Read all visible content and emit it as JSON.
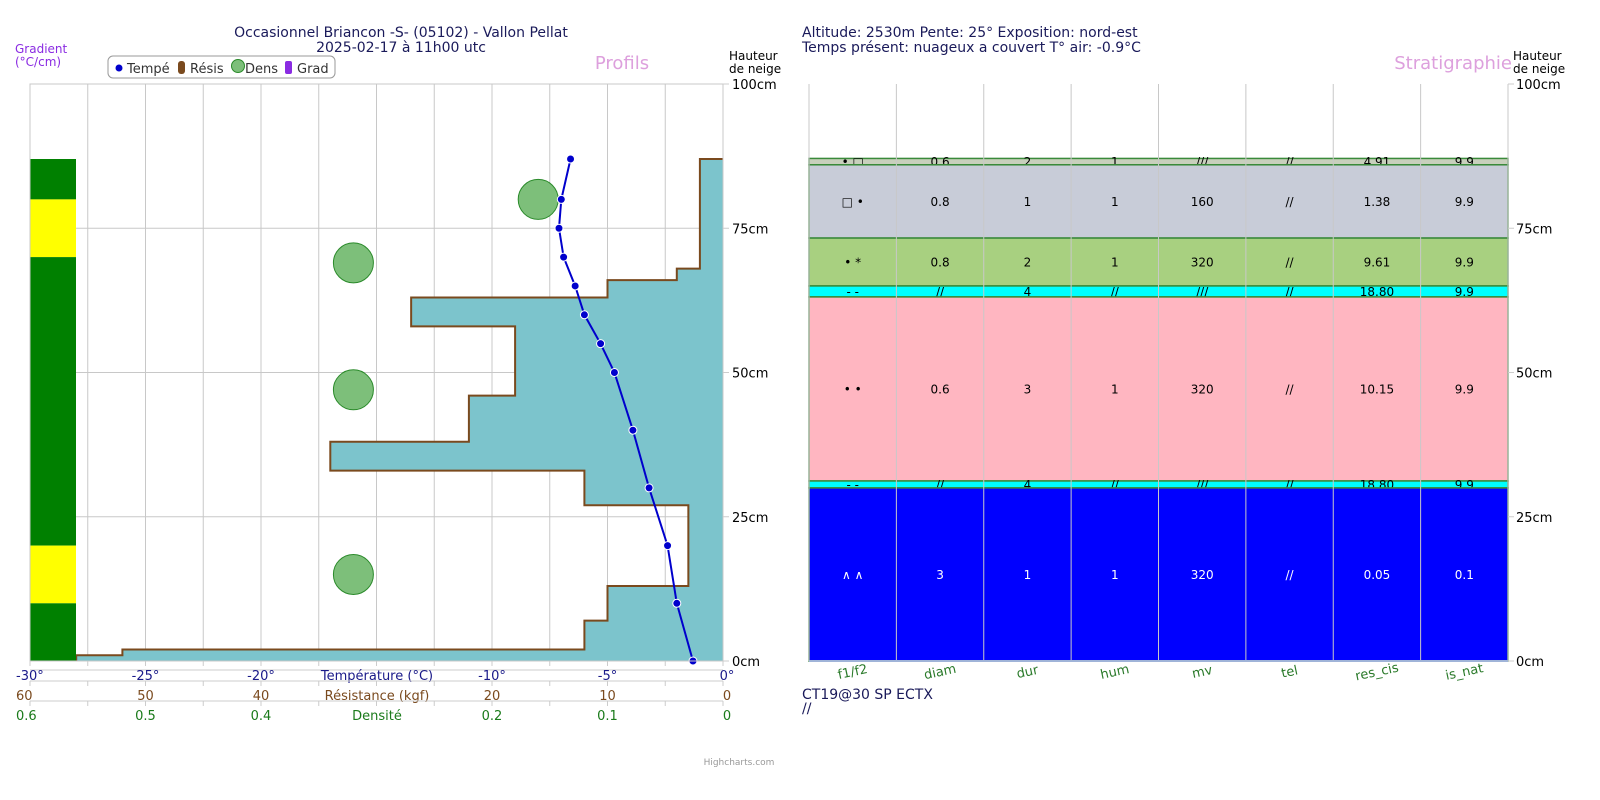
{
  "chart_data": [
    {
      "type": "line",
      "title": "Occasionnel Briancon -S- (05102) - Vallon Pellat",
      "subtitle": "2025-02-17 à 11h00 utc",
      "watermark": "Profils",
      "left_axis_title": "Gradient (°C/cm)",
      "left_axis_title_lines": [
        "Gradient",
        "(°C/cm)"
      ],
      "right_axis_title_lines": [
        "Hauteur",
        "de neige"
      ],
      "legend": [
        "Tempé",
        "Résis",
        "Dens",
        "Grad"
      ],
      "legend_placement": "top-left",
      "colors": {
        "temp": "#0000cc",
        "resis": "#7a4a1e",
        "resis_fill": "#7cc4cc",
        "dens": "#7dbf7a",
        "grad": "#8a2be2",
        "grad_green": "#008000",
        "grad_yellow": "#ffff00"
      },
      "y_axis": {
        "range": [
          0,
          100
        ],
        "ticks": [
          "0cm",
          "25cm",
          "50cm",
          "75cm",
          "100cm"
        ]
      },
      "x_axes": [
        {
          "title": "Température (°C)",
          "range": [
            -30,
            0
          ],
          "ticks": [
            "-30°",
            "-25°",
            "-20°",
            "-10°",
            "-5°",
            "0°"
          ],
          "tick_values": [
            -30,
            -25,
            -20,
            -10,
            -5,
            0
          ]
        },
        {
          "title": "Résistance (kgf)",
          "range": [
            60,
            0
          ],
          "ticks": [
            "60",
            "50",
            "40",
            "20",
            "10",
            "0"
          ],
          "tick_values": [
            60,
            50,
            40,
            20,
            10,
            0
          ]
        },
        {
          "title": "Densité",
          "range": [
            0.6,
            0
          ],
          "ticks": [
            "0.6",
            "0.5",
            "0.4",
            "0.2",
            "0.1",
            "0"
          ],
          "tick_values": [
            0.6,
            0.5,
            0.4,
            0.2,
            0.1,
            0
          ]
        }
      ],
      "temperature": {
        "heights": [
          87,
          80,
          75,
          70,
          65,
          60,
          55,
          50,
          40,
          30,
          20,
          10,
          0
        ],
        "values": [
          -6.6,
          -7.0,
          -7.1,
          -6.9,
          -6.4,
          -6.0,
          -5.3,
          -4.7,
          -3.9,
          -3.2,
          -2.4,
          -2.0,
          -1.3
        ]
      },
      "resistance_layers": [
        {
          "top": 87,
          "bottom": 68,
          "value": 2
        },
        {
          "top": 68,
          "bottom": 66,
          "value": 4
        },
        {
          "top": 66,
          "bottom": 63,
          "value": 10
        },
        {
          "top": 63,
          "bottom": 58,
          "value": 27
        },
        {
          "top": 58,
          "bottom": 46,
          "value": 18
        },
        {
          "top": 46,
          "bottom": 38,
          "value": 22
        },
        {
          "top": 38,
          "bottom": 33,
          "value": 34
        },
        {
          "top": 33,
          "bottom": 27,
          "value": 12
        },
        {
          "top": 27,
          "bottom": 13,
          "value": 3
        },
        {
          "top": 13,
          "bottom": 7,
          "value": 10
        },
        {
          "top": 7,
          "bottom": 2,
          "value": 12
        },
        {
          "top": 2,
          "bottom": 1,
          "value": 52
        },
        {
          "top": 1,
          "bottom": 0,
          "value": 56
        }
      ],
      "density_points": [
        {
          "height": 80,
          "value": 0.16
        },
        {
          "height": 69,
          "value": 0.32
        },
        {
          "height": 47,
          "value": 0.32
        },
        {
          "height": 15,
          "value": 0.32
        }
      ],
      "gradient_segments": [
        {
          "top": 87,
          "bottom": 80,
          "color": "green"
        },
        {
          "top": 80,
          "bottom": 70,
          "color": "yellow"
        },
        {
          "top": 70,
          "bottom": 20,
          "color": "green"
        },
        {
          "top": 20,
          "bottom": 10,
          "color": "yellow"
        },
        {
          "top": 10,
          "bottom": 0,
          "color": "green"
        }
      ]
    },
    {
      "type": "table",
      "title_lines": [
        "Altitude: 2530m Pente: 25° Exposition: nord-est",
        "Temps présent: nuageux a couvert T° air: -0.9°C"
      ],
      "watermark": "Stratigraphie",
      "right_axis_title_lines": [
        "Hauteur",
        "de neige"
      ],
      "y_axis": {
        "range": [
          0,
          100
        ],
        "ticks": [
          "0cm",
          "25cm",
          "50cm",
          "75cm",
          "100cm"
        ]
      },
      "columns": [
        "f1/f2",
        "diam",
        "dur",
        "hum",
        "mv",
        "tel",
        "res_cis",
        "is_nat"
      ],
      "layers": [
        {
          "top": 87.1,
          "bottom": 86,
          "color": "#c8d0bc",
          "text_color": "#000000",
          "cells": [
            "• □",
            "0.6",
            "2",
            "1",
            "///",
            "//",
            "4.91",
            "9.9"
          ]
        },
        {
          "top": 86,
          "bottom": 73.3,
          "color": "#c8ccd8",
          "text_color": "#000000",
          "cells": [
            "□ •",
            "0.8",
            "1",
            "1",
            "160",
            "//",
            "1.38",
            "9.9"
          ]
        },
        {
          "top": 73.3,
          "bottom": 65,
          "color": "#a8d080",
          "text_color": "#000000",
          "cells": [
            "• *",
            "0.8",
            "2",
            "1",
            "320",
            "//",
            "9.61",
            "9.9"
          ]
        },
        {
          "top": 65,
          "bottom": 63.1,
          "color": "#00ffff",
          "text_color": "#000000",
          "cells": [
            "- -",
            "//",
            "4",
            "//",
            "///",
            "//",
            "18.80",
            "9.9"
          ]
        },
        {
          "top": 63.1,
          "bottom": 31.2,
          "color": "#ffb6c1",
          "text_color": "#000000",
          "cells": [
            "• •",
            "0.6",
            "3",
            "1",
            "320",
            "//",
            "10.15",
            "9.9"
          ]
        },
        {
          "top": 31.2,
          "bottom": 30,
          "color": "#00ffff",
          "text_color": "#000000",
          "cells": [
            "- -",
            "//",
            "4",
            "//",
            "///",
            "//",
            "18.80",
            "9.9"
          ]
        },
        {
          "top": 30,
          "bottom": 0,
          "color": "#0000ff",
          "text_color": "#ffffff",
          "cells": [
            "∧ ∧",
            "3",
            "1",
            "1",
            "320",
            "//",
            "0.05",
            "0.1"
          ]
        }
      ],
      "footer_lines": [
        "CT19@30 SP ECTX",
        "//"
      ]
    }
  ],
  "credits": "Highcharts.com"
}
